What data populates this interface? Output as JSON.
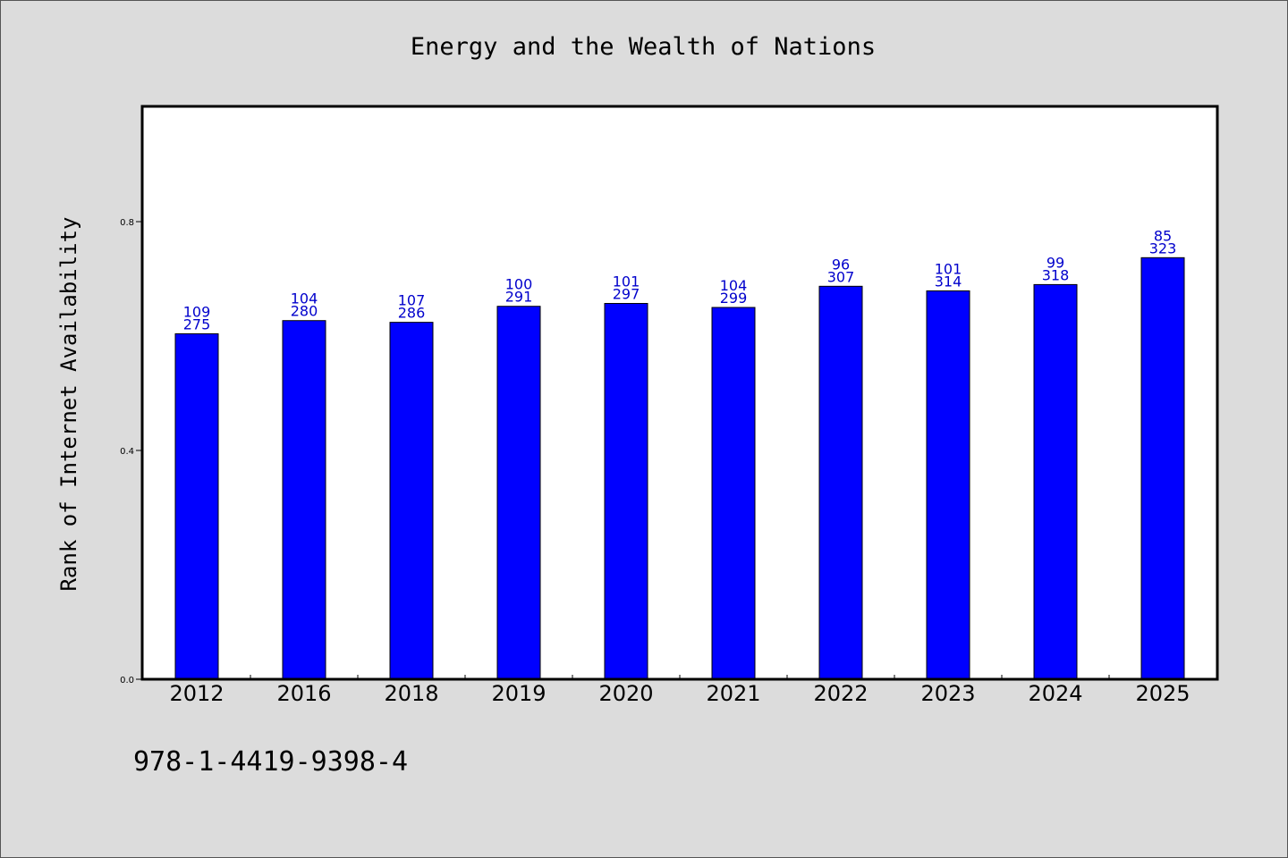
{
  "chart_data": {
    "type": "bar",
    "title": "Energy and the Wealth of Nations",
    "xlabel": "",
    "ylabel": "Rank of Internet Availability",
    "ylim": [
      0,
      1.0
    ],
    "yticks": [
      "0.0",
      "0.4",
      "0.8"
    ],
    "ytick_values": [
      0.0,
      0.4,
      0.8
    ],
    "categories": [
      "2012",
      "2016",
      "2018",
      "2019",
      "2020",
      "2021",
      "2022",
      "2023",
      "2024",
      "2025"
    ],
    "series": [
      {
        "values": [
          0.604,
          0.627,
          0.624,
          0.652,
          0.657,
          0.65,
          0.687,
          0.679,
          0.69,
          0.737
        ]
      }
    ],
    "data_labels": [
      {
        "top": "109",
        "bottom": "275"
      },
      {
        "top": "104",
        "bottom": "280"
      },
      {
        "top": "107",
        "bottom": "286"
      },
      {
        "top": "100",
        "bottom": "291"
      },
      {
        "top": "101",
        "bottom": "297"
      },
      {
        "top": "104",
        "bottom": "299"
      },
      {
        "top": "96",
        "bottom": "307"
      },
      {
        "top": "101",
        "bottom": "314"
      },
      {
        "top": "99",
        "bottom": "318"
      },
      {
        "top": "85",
        "bottom": "323"
      }
    ],
    "grid": false,
    "bar_color": "#0000ff",
    "label_color": "#0000cc"
  },
  "footer": {
    "text": "978-1-4419-9398-4"
  }
}
